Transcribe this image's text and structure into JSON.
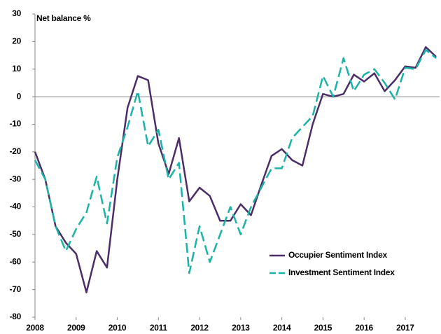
{
  "chart_data": {
    "type": "line",
    "y_label": "Net balance %",
    "x": [
      2008,
      2008.25,
      2008.5,
      2008.75,
      2009,
      2009.25,
      2009.5,
      2009.75,
      2010,
      2010.25,
      2010.5,
      2010.75,
      2011,
      2011.25,
      2011.5,
      2011.75,
      2012,
      2012.25,
      2012.5,
      2012.75,
      2013,
      2013.25,
      2013.5,
      2013.75,
      2014,
      2014.25,
      2014.5,
      2014.75,
      2015,
      2015.25,
      2015.5,
      2015.75,
      2016,
      2016.25,
      2016.5,
      2016.75,
      2017,
      2017.25,
      2017.5,
      2017.75
    ],
    "series": [
      {
        "name": "Occupier Sentiment Index",
        "color": "#4b2e67",
        "dashed": false,
        "values": [
          -20,
          -30,
          -47,
          -53,
          -57,
          -71,
          -56,
          -62,
          -30,
          -4,
          7.5,
          6,
          -17,
          -28,
          -15,
          -38,
          -33,
          -36,
          -45,
          -45,
          -39,
          -43,
          -32,
          -21.5,
          -19,
          -23,
          -25,
          -10,
          1,
          0,
          1,
          8,
          5.5,
          8.5,
          2,
          6,
          11,
          10.5,
          18,
          14.5
        ]
      },
      {
        "name": "Investment Sentiment Index",
        "color": "#1ab3a6",
        "dashed": true,
        "values": [
          -23,
          -30,
          -47,
          -56,
          -48,
          -42,
          -29,
          -46,
          -22,
          -11,
          2,
          -18,
          -12,
          -30,
          -24,
          -64,
          -47,
          -60,
          -50,
          -40,
          -50,
          -40,
          -33,
          -26,
          -26,
          -15,
          -11,
          -7,
          7.5,
          0,
          14,
          2,
          8,
          10,
          5,
          -1,
          10.5,
          10,
          17,
          14
        ]
      }
    ],
    "xlim": [
      2008,
      2017.75
    ],
    "xticks": [
      2008,
      2009,
      2010,
      2011,
      2012,
      2013,
      2014,
      2015,
      2016,
      2017
    ],
    "ylim": [
      -80,
      30
    ],
    "yticks": [
      -80,
      -70,
      -60,
      -50,
      -40,
      -30,
      -20,
      -10,
      0,
      10,
      20,
      30
    ],
    "grid": false,
    "legend": "lower right"
  }
}
